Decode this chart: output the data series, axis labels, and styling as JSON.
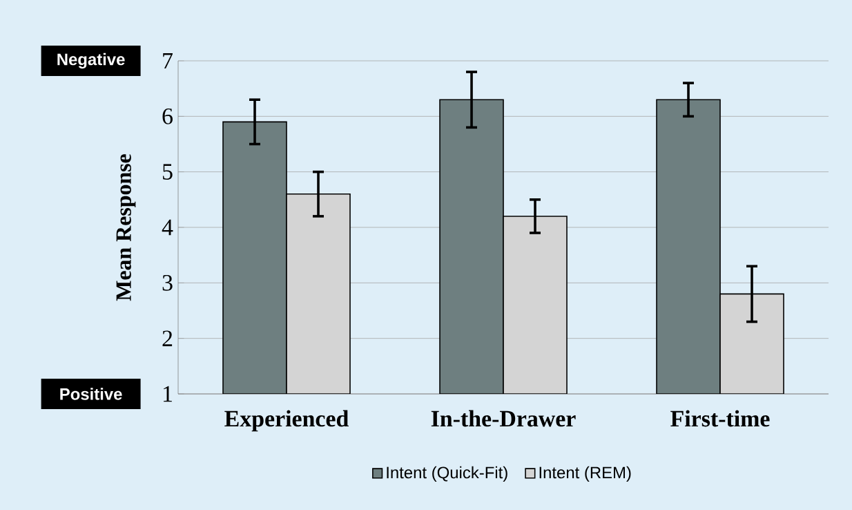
{
  "chart_data": {
    "type": "bar",
    "ylabel": "Mean Response",
    "categories": [
      "Experienced",
      "In-the-Drawer",
      "First-time"
    ],
    "series": [
      {
        "name": "Intent (Quick-Fit)",
        "color": "#6e7f80",
        "values": [
          5.9,
          6.3,
          6.3
        ],
        "errors": [
          0.4,
          0.5,
          0.3
        ]
      },
      {
        "name": "Intent (REM)",
        "color": "#d4d4d4",
        "values": [
          4.6,
          4.2,
          2.8
        ],
        "errors": [
          0.4,
          0.3,
          0.5
        ]
      }
    ],
    "ylim": [
      1,
      7
    ],
    "yticks": [
      1,
      2,
      3,
      4,
      5,
      6,
      7
    ],
    "grid": "y",
    "legend": "bottom",
    "annotations": [
      "Negative",
      "Positive"
    ]
  }
}
